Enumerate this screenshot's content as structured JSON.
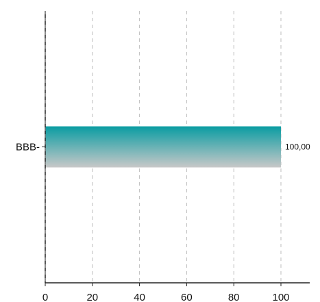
{
  "chart_data": {
    "type": "bar",
    "orientation": "horizontal",
    "categories": [
      "BBB-"
    ],
    "values": [
      100
    ],
    "data_labels": [
      "100,00"
    ],
    "xlim": [
      0,
      100
    ],
    "xticks": [
      0,
      20,
      40,
      60,
      80,
      100
    ],
    "xtick_labels": [
      "0",
      "20",
      "40",
      "60",
      "80",
      "100"
    ],
    "grid": "vertical dashed",
    "colors": {
      "bar_top": "#0a9ca2",
      "bar_bottom": "#c8c8c8",
      "grid": "#bdbdbd",
      "axis": "#222222",
      "text": "#111111"
    }
  }
}
